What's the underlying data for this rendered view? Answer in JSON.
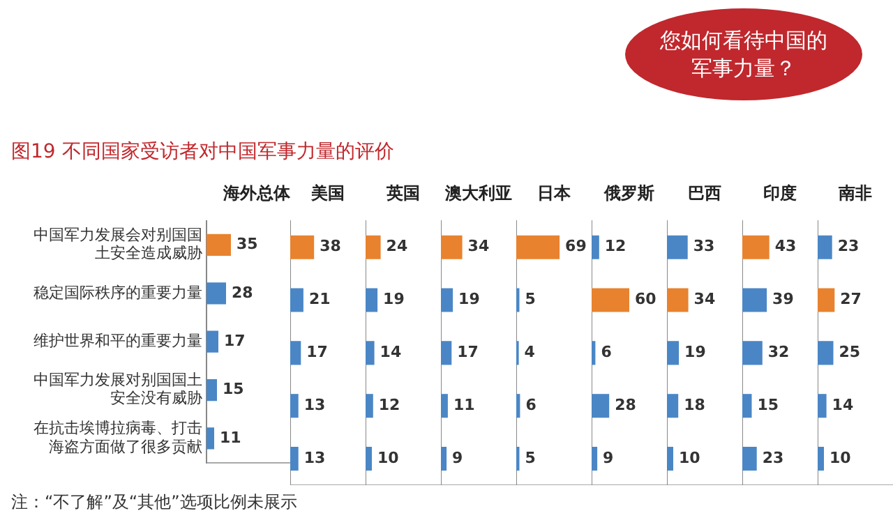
{
  "chart_data": [
    {
      "type": "bar",
      "orientation": "horizontal",
      "title": "海外总体",
      "categories": [
        "中国军力发展会对别国国土安全造成威胁",
        "稳定国际秩序的重要力量",
        "维护世界和平的重要力量",
        "中国军力发展对别国国土安全没有威胁",
        "在抗击埃博拉病毒、打击海盗方面做了很多贡献"
      ],
      "values": [
        35,
        28,
        17,
        15,
        11
      ],
      "colors": [
        "#e8822e",
        "#4a86c5",
        "#4a86c5",
        "#4a86c5",
        "#4a86c5"
      ],
      "xlim": [
        0,
        120
      ],
      "data_labels": true,
      "tick_labels": "y",
      "annotations": [
        "您如何看待中国的军事力量？",
        "图19  不同国家受访者对中国军事力量的评价",
        "注：“不了解”及“其他”选项比例未展示"
      ]
    },
    {
      "type": "bar",
      "orientation": "horizontal",
      "title": "美国",
      "categories": [
        "中国军力发展会对别国国土安全造成威胁",
        "稳定国际秩序的重要力量",
        "维护世界和平的重要力量",
        "中国军力发展对别国国土安全没有威胁",
        "在抗击埃博拉病毒、打击海盗方面做了很多贡献"
      ],
      "values": [
        38,
        21,
        17,
        13,
        13
      ],
      "colors": [
        "#e8822e",
        "#4a86c5",
        "#4a86c5",
        "#4a86c5",
        "#4a86c5"
      ],
      "xlim": [
        0,
        120
      ],
      "data_labels": true,
      "tick_labels": false
    },
    {
      "type": "bar",
      "orientation": "horizontal",
      "title": "英国",
      "categories": [
        "中国军力发展会对别国国土安全造成威胁",
        "稳定国际秩序的重要力量",
        "维护世界和平的重要力量",
        "中国军力发展对别国国土安全没有威胁",
        "在抗击埃博拉病毒、打击海盗方面做了很多贡献"
      ],
      "values": [
        24,
        19,
        14,
        12,
        10
      ],
      "colors": [
        "#e8822e",
        "#4a86c5",
        "#4a86c5",
        "#4a86c5",
        "#4a86c5"
      ],
      "xlim": [
        0,
        120
      ],
      "data_labels": true,
      "tick_labels": false
    },
    {
      "type": "bar",
      "orientation": "horizontal",
      "title": "澳大利亚",
      "categories": [
        "中国军力发展会对别国国土安全造成威胁",
        "稳定国际秩序的重要力量",
        "维护世界和平的重要力量",
        "中国军力发展对别国国土安全没有威胁",
        "在抗击埃博拉病毒、打击海盗方面做了很多贡献"
      ],
      "values": [
        34,
        19,
        17,
        11,
        9
      ],
      "colors": [
        "#e8822e",
        "#4a86c5",
        "#4a86c5",
        "#4a86c5",
        "#4a86c5"
      ],
      "xlim": [
        0,
        120
      ],
      "data_labels": true,
      "tick_labels": false
    },
    {
      "type": "bar",
      "orientation": "horizontal",
      "title": "日本",
      "categories": [
        "中国军力发展会对别国国土安全造成威胁",
        "稳定国际秩序的重要力量",
        "维护世界和平的重要力量",
        "中国军力发展对别国国土安全没有威胁",
        "在抗击埃博拉病毒、打击海盗方面做了很多贡献"
      ],
      "values": [
        69,
        5,
        4,
        6,
        5
      ],
      "colors": [
        "#e8822e",
        "#4a86c5",
        "#4a86c5",
        "#4a86c5",
        "#4a86c5"
      ],
      "xlim": [
        0,
        120
      ],
      "data_labels": true,
      "tick_labels": false
    },
    {
      "type": "bar",
      "orientation": "horizontal",
      "title": "俄罗斯",
      "categories": [
        "中国军力发展会对别国国土安全造成威胁",
        "稳定国际秩序的重要力量",
        "维护世界和平的重要力量",
        "中国军力发展对别国国土安全没有威胁",
        "在抗击埃博拉病毒、打击海盗方面做了很多贡献"
      ],
      "values": [
        12,
        60,
        6,
        28,
        9
      ],
      "colors": [
        "#4a86c5",
        "#e8822e",
        "#4a86c5",
        "#4a86c5",
        "#4a86c5"
      ],
      "xlim": [
        0,
        120
      ],
      "data_labels": true,
      "tick_labels": false
    },
    {
      "type": "bar",
      "orientation": "horizontal",
      "title": "巴西",
      "categories": [
        "中国军力发展会对别国国土安全造成威胁",
        "稳定国际秩序的重要力量",
        "维护世界和平的重要力量",
        "中国军力发展对别国国土安全没有威胁",
        "在抗击埃博拉病毒、打击海盗方面做了很多贡献"
      ],
      "values": [
        33,
        34,
        19,
        18,
        10
      ],
      "colors": [
        "#4a86c5",
        "#e8822e",
        "#4a86c5",
        "#4a86c5",
        "#4a86c5"
      ],
      "xlim": [
        0,
        120
      ],
      "data_labels": true,
      "tick_labels": false
    },
    {
      "type": "bar",
      "orientation": "horizontal",
      "title": "印度",
      "categories": [
        "中国军力发展会对别国国土安全造成威胁",
        "稳定国际秩序的重要力量",
        "维护世界和平的重要力量",
        "中国军力发展对别国国土安全没有威胁",
        "在抗击埃博拉病毒、打击海盗方面做了很多贡献"
      ],
      "values": [
        43,
        39,
        32,
        15,
        23
      ],
      "colors": [
        "#e8822e",
        "#4a86c5",
        "#4a86c5",
        "#4a86c5",
        "#4a86c5"
      ],
      "xlim": [
        0,
        120
      ],
      "data_labels": true,
      "tick_labels": false
    },
    {
      "type": "bar",
      "orientation": "horizontal",
      "title": "南非",
      "categories": [
        "中国军力发展会对别国国土安全造成威胁",
        "稳定国际秩序的重要力量",
        "维护世界和平的重要力量",
        "中国军力发展对别国国土安全没有威胁",
        "在抗击埃博拉病毒、打击海盗方面做了很多贡献"
      ],
      "values": [
        23,
        27,
        25,
        14,
        10
      ],
      "colors": [
        "#4a86c5",
        "#e8822e",
        "#4a86c5",
        "#4a86c5",
        "#4a86c5"
      ],
      "xlim": [
        0,
        120
      ],
      "data_labels": true,
      "tick_labels": false
    }
  ]
}
